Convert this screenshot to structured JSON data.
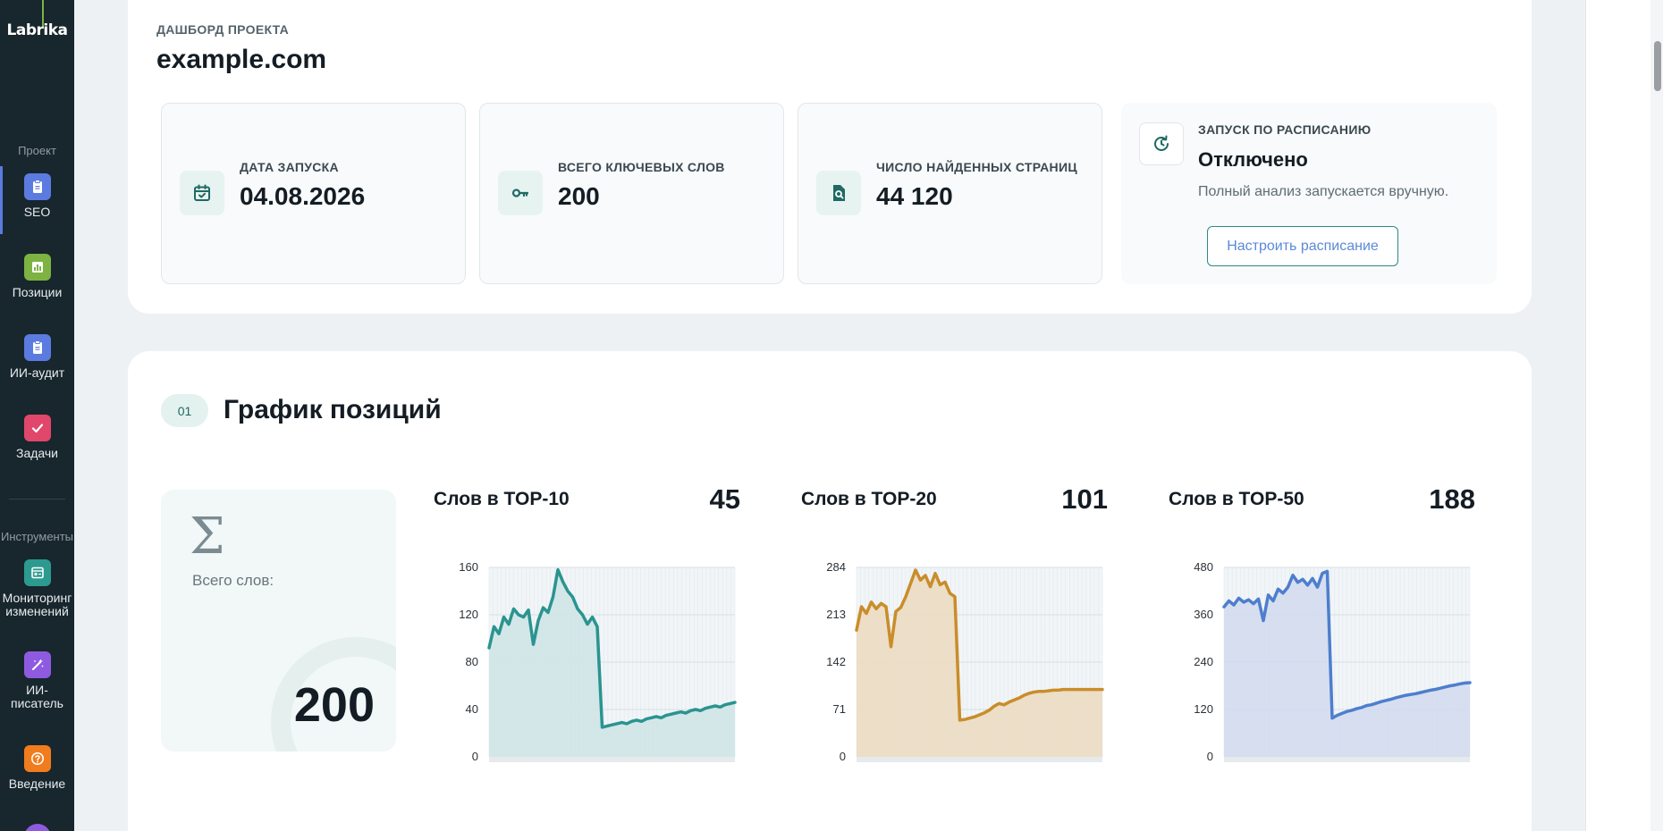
{
  "sidebar": {
    "logo": "Labrika",
    "section_project": "Проект",
    "section_tools": "Инструменты",
    "items": [
      {
        "label": "SEO",
        "color": "#5b7be0"
      },
      {
        "label": "Позиции",
        "color": "#7cb342"
      },
      {
        "label": "ИИ-аудит",
        "color": "#5b7be0"
      },
      {
        "label": "Задачи",
        "color": "#e0476b"
      },
      {
        "label": "Мониторинг изменений",
        "color": "#2d9a8f"
      },
      {
        "label": "ИИ-писатель",
        "color": "#8e5be0"
      },
      {
        "label": "Введение",
        "color": "#f07c1e"
      }
    ]
  },
  "header": {
    "overline": "ДАШБОРД ПРОЕКТА",
    "project": "example.com"
  },
  "stats": [
    {
      "label": "ДАТА ЗАПУСКА",
      "value": "04.08.2026",
      "icon": "calendar-check-icon"
    },
    {
      "label": "ВСЕГО КЛЮЧЕВЫХ СЛОВ",
      "value": "200",
      "icon": "key-icon"
    },
    {
      "label": "ЧИСЛО НАЙДЕННЫХ СТРАНИЦ",
      "value": "44 120",
      "icon": "search-document-icon"
    }
  ],
  "schedule": {
    "label": "ЗАПУСК ПО РАСПИСАНИЮ",
    "value": "Отключено",
    "desc": "Полный анализ запускается вручную.",
    "button": "Настроить расписание",
    "icon": "schedule-refresh-icon"
  },
  "positions": {
    "badge": "01",
    "title": "График позиций",
    "total_label": "Всего слов:",
    "total_value": "200"
  },
  "chart_data": [
    {
      "type": "area",
      "title": "Слов в TOP-10",
      "value_label": "45",
      "color": "#2a9490",
      "fill": "#cfe6e5",
      "yticks": [
        0,
        40,
        80,
        120,
        160
      ],
      "ylim": [
        0,
        160
      ],
      "x": [
        0,
        1,
        2,
        3,
        4,
        5,
        6,
        7,
        8,
        9,
        10,
        11,
        12,
        13,
        14,
        15,
        16,
        17,
        18,
        19,
        20,
        21,
        22,
        23,
        24,
        25,
        26,
        27,
        28,
        29,
        30,
        31,
        32,
        33,
        34,
        35,
        36,
        37,
        38,
        39,
        40,
        41,
        42,
        43,
        44,
        45,
        46,
        47,
        48,
        49,
        50
      ],
      "values": [
        92,
        110,
        104,
        118,
        112,
        125,
        120,
        118,
        124,
        95,
        115,
        126,
        122,
        135,
        158,
        148,
        140,
        135,
        125,
        120,
        112,
        118,
        110,
        25,
        26,
        27,
        28,
        29,
        28,
        30,
        31,
        30,
        32,
        33,
        34,
        33,
        35,
        36,
        37,
        38,
        37,
        39,
        40,
        39,
        41,
        42,
        43,
        42,
        44,
        45,
        46
      ]
    },
    {
      "type": "area",
      "title": "Слов в TOP-20",
      "value_label": "101",
      "color": "#c98d2a",
      "fill": "#ecdcc2",
      "yticks": [
        0,
        71,
        142,
        213,
        284
      ],
      "ylim": [
        0,
        284
      ],
      "x": [
        0,
        1,
        2,
        3,
        4,
        5,
        6,
        7,
        8,
        9,
        10,
        11,
        12,
        13,
        14,
        15,
        16,
        17,
        18,
        19,
        20,
        21,
        22,
        23,
        24,
        25,
        26,
        27,
        28,
        29,
        30,
        31,
        32,
        33,
        34,
        35,
        36,
        37,
        38,
        39,
        40,
        41,
        42,
        43,
        44,
        45,
        46,
        47,
        48,
        49,
        50
      ],
      "values": [
        190,
        225,
        215,
        232,
        222,
        230,
        225,
        165,
        218,
        224,
        240,
        260,
        280,
        265,
        272,
        255,
        275,
        258,
        262,
        245,
        240,
        55,
        56,
        58,
        60,
        63,
        66,
        70,
        76,
        80,
        78,
        82,
        85,
        88,
        92,
        95,
        97,
        98,
        98,
        99,
        100,
        100,
        101,
        101,
        101,
        101,
        101,
        101,
        101,
        101,
        101
      ]
    },
    {
      "type": "area",
      "title": "Слов в TOP-50",
      "value_label": "188",
      "color": "#4e7ecd",
      "fill": "#d3dcee",
      "yticks": [
        0,
        120,
        240,
        360,
        480
      ],
      "ylim": [
        0,
        480
      ],
      "x": [
        0,
        1,
        2,
        3,
        4,
        5,
        6,
        7,
        8,
        9,
        10,
        11,
        12,
        13,
        14,
        15,
        16,
        17,
        18,
        19,
        20,
        21,
        22,
        23,
        24,
        25,
        26,
        27,
        28,
        29,
        30,
        31,
        32,
        33,
        34,
        35,
        36,
        37,
        38,
        39,
        40,
        41,
        42,
        43,
        44,
        45,
        46,
        47,
        48,
        49,
        50
      ],
      "values": [
        380,
        395,
        385,
        402,
        392,
        398,
        388,
        400,
        345,
        410,
        395,
        425,
        415,
        430,
        460,
        442,
        450,
        435,
        452,
        430,
        465,
        470,
        98,
        105,
        110,
        115,
        118,
        122,
        125,
        130,
        132,
        136,
        140,
        143,
        146,
        150,
        153,
        156,
        158,
        160,
        163,
        166,
        169,
        171,
        174,
        177,
        180,
        182,
        185,
        187,
        188
      ]
    }
  ]
}
